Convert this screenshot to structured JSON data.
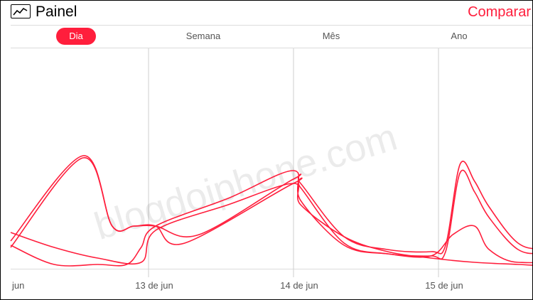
{
  "header": {
    "title": "Painel",
    "compare_label": "Comparar"
  },
  "tabs": [
    {
      "label": "Dia",
      "active": true
    },
    {
      "label": "Semana",
      "active": false
    },
    {
      "label": "Mês",
      "active": false
    },
    {
      "label": "Ano",
      "active": false
    }
  ],
  "watermark": "blogdoiphone.com",
  "chart_data": {
    "type": "line",
    "x_ticks": [
      "jun",
      "13 de jun",
      "14 de jun",
      "15 de jun"
    ],
    "line_color": "#ff1e3c",
    "grid": true,
    "series": [
      {
        "points": [
          [
            0,
            0.13
          ],
          [
            0.5,
            0.53
          ],
          [
            0.7,
            0.2
          ],
          [
            0.85,
            0.2
          ],
          [
            1.0,
            0.2
          ],
          [
            1.3,
            0.16
          ],
          [
            1.95,
            0.42
          ],
          [
            2.0,
            0.4
          ],
          [
            2.3,
            0.15
          ],
          [
            2.6,
            0.09
          ],
          [
            2.9,
            0.08
          ],
          [
            3.0,
            0.11
          ],
          [
            3.1,
            0.49
          ],
          [
            3.2,
            0.41
          ],
          [
            3.3,
            0.29
          ],
          [
            3.5,
            0.12
          ],
          [
            3.7,
            0.09
          ],
          [
            4.0,
            0.08
          ],
          [
            4.45,
            0.05
          ],
          [
            4.6,
            0.02
          ]
        ]
      },
      {
        "points": [
          [
            0,
            0.1
          ],
          [
            0.5,
            0.52
          ],
          [
            0.7,
            0.2
          ],
          [
            0.85,
            0.2
          ],
          [
            1.0,
            0.2
          ],
          [
            1.2,
            0.12
          ],
          [
            1.95,
            0.4
          ],
          [
            2.0,
            0.38
          ],
          [
            2.3,
            0.12
          ],
          [
            2.6,
            0.07
          ],
          [
            2.9,
            0.06
          ],
          [
            3.0,
            0.08
          ],
          [
            3.1,
            0.45
          ],
          [
            3.2,
            0.36
          ],
          [
            3.3,
            0.24
          ],
          [
            3.5,
            0.09
          ],
          [
            3.7,
            0.07
          ],
          [
            4.0,
            0.06
          ],
          [
            4.45,
            0.04
          ],
          [
            4.6,
            0.02
          ]
        ]
      },
      {
        "points": [
          [
            0,
            0.11
          ],
          [
            0.3,
            0.02
          ],
          [
            0.6,
            0.02
          ],
          [
            0.8,
            0.02
          ],
          [
            0.9,
            0.1
          ],
          [
            1.0,
            0.2
          ],
          [
            1.5,
            0.33
          ],
          [
            1.95,
            0.46
          ],
          [
            2.0,
            0.32
          ],
          [
            2.3,
            0.11
          ],
          [
            2.6,
            0.07
          ],
          [
            2.9,
            0.06
          ],
          [
            3.05,
            0.16
          ],
          [
            3.2,
            0.2
          ],
          [
            3.3,
            0.09
          ],
          [
            3.5,
            0.03
          ],
          [
            3.8,
            0.08
          ],
          [
            3.9,
            0.41
          ],
          [
            4.0,
            0.29
          ],
          [
            4.3,
            0.22
          ]
        ]
      },
      {
        "points": [
          [
            0,
            0.17
          ],
          [
            0.3,
            0.1
          ],
          [
            0.6,
            0.05
          ],
          [
            0.9,
            0.03
          ],
          [
            1.0,
            0.18
          ],
          [
            1.5,
            0.3
          ],
          [
            1.95,
            0.4
          ],
          [
            2.0,
            0.3
          ],
          [
            2.3,
            0.15
          ],
          [
            2.6,
            0.08
          ],
          [
            2.9,
            0.05
          ],
          [
            3.2,
            0.03
          ],
          [
            3.5,
            0.02
          ],
          [
            3.8,
            0.01
          ],
          [
            4.0,
            0.01
          ],
          [
            4.6,
            0.01
          ]
        ]
      }
    ]
  }
}
